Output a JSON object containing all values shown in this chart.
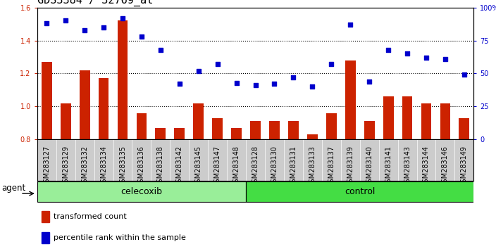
{
  "title": "GDS3384 / 32769_at",
  "samples": [
    "GSM283127",
    "GSM283129",
    "GSM283132",
    "GSM283134",
    "GSM283135",
    "GSM283136",
    "GSM283138",
    "GSM283142",
    "GSM283145",
    "GSM283147",
    "GSM283148",
    "GSM283128",
    "GSM283130",
    "GSM283131",
    "GSM283133",
    "GSM283137",
    "GSM283139",
    "GSM283140",
    "GSM283141",
    "GSM283143",
    "GSM283144",
    "GSM283146",
    "GSM283149"
  ],
  "bar_values": [
    1.27,
    1.02,
    1.22,
    1.17,
    1.52,
    0.96,
    0.87,
    0.87,
    1.02,
    0.93,
    0.87,
    0.91,
    0.91,
    0.91,
    0.83,
    0.96,
    1.28,
    0.91,
    1.06,
    1.06,
    1.02,
    1.02,
    0.93
  ],
  "scatter_values": [
    88,
    90,
    83,
    85,
    92,
    78,
    68,
    42,
    52,
    57,
    43,
    41,
    42,
    47,
    40,
    57,
    87,
    44,
    68,
    65,
    62,
    61,
    49
  ],
  "celecoxib_count": 11,
  "control_count": 12,
  "ylim_left": [
    0.8,
    1.6
  ],
  "ylim_right": [
    0,
    100
  ],
  "yticks_left": [
    0.8,
    1.0,
    1.2,
    1.4,
    1.6
  ],
  "yticks_right": [
    0,
    25,
    50,
    75,
    100
  ],
  "bar_color": "#cc2200",
  "scatter_color": "#0000cc",
  "celecoxib_color": "#99ee99",
  "control_color": "#44dd44",
  "bg_color": "#ffffff",
  "xtick_bg_color": "#cccccc",
  "agent_label": "agent",
  "celecoxib_label": "celecoxib",
  "control_label": "control",
  "legend_bar_label": "transformed count",
  "legend_scatter_label": "percentile rank within the sample",
  "title_fontsize": 11,
  "tick_fontsize": 7,
  "label_fontsize": 9
}
